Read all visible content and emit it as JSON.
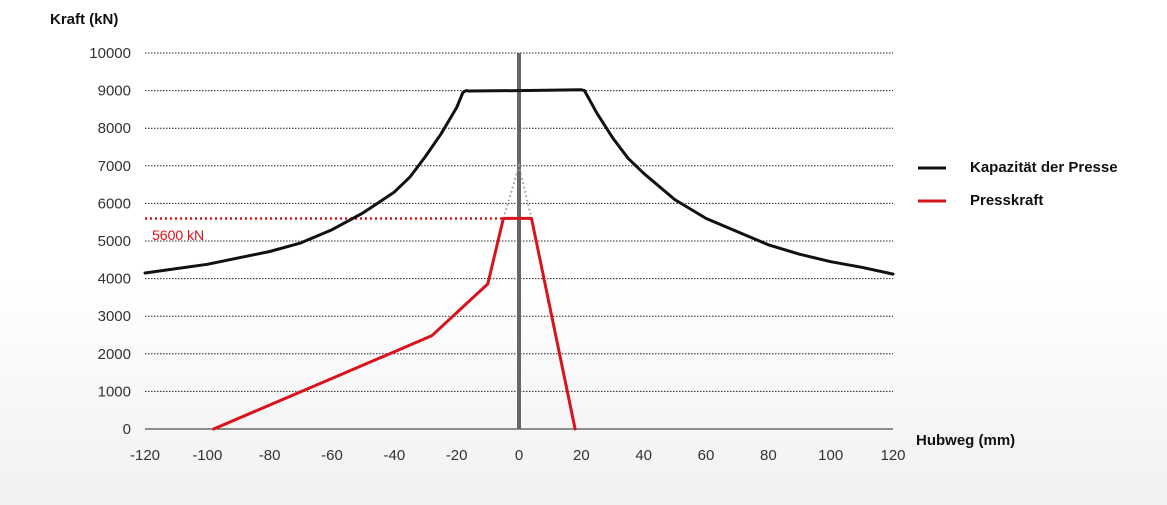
{
  "chart_data": {
    "type": "line",
    "ylabel": "Kraft (kN)",
    "xlabel": "Hubweg (mm)",
    "xlim": [
      -120,
      120
    ],
    "ylim": [
      0,
      10000
    ],
    "x_ticks": [
      -120,
      -100,
      -80,
      -60,
      -40,
      -20,
      0,
      20,
      40,
      60,
      80,
      100,
      120
    ],
    "y_ticks": [
      0,
      1000,
      2000,
      3000,
      4000,
      5000,
      6000,
      7000,
      8000,
      9000,
      10000
    ],
    "grid": "horizontal dotted",
    "legend_position": "right",
    "series": [
      {
        "name": "Kapazität der Presse",
        "color": "#111111",
        "points": [
          [
            -120,
            4150
          ],
          [
            -100,
            4380
          ],
          [
            -80,
            4720
          ],
          [
            -70,
            4950
          ],
          [
            -60,
            5300
          ],
          [
            -50,
            5750
          ],
          [
            -40,
            6300
          ],
          [
            -35,
            6700
          ],
          [
            -30,
            7250
          ],
          [
            -25,
            7850
          ],
          [
            -20,
            8550
          ],
          [
            -18,
            8950
          ],
          [
            -17,
            9000
          ],
          [
            -16,
            8990
          ],
          [
            0,
            9000
          ],
          [
            20,
            9020
          ],
          [
            21,
            9000
          ],
          [
            25,
            8400
          ],
          [
            30,
            7750
          ],
          [
            35,
            7200
          ],
          [
            40,
            6800
          ],
          [
            50,
            6100
          ],
          [
            60,
            5600
          ],
          [
            70,
            5250
          ],
          [
            80,
            4900
          ],
          [
            90,
            4650
          ],
          [
            100,
            4450
          ],
          [
            110,
            4300
          ],
          [
            120,
            4120
          ]
        ]
      },
      {
        "name": "Presskraft",
        "color": "#d9131d",
        "points": [
          [
            -98,
            0
          ],
          [
            -28,
            2480
          ],
          [
            -10,
            3860
          ],
          [
            -5,
            5600
          ],
          [
            4,
            5600
          ],
          [
            18,
            0
          ]
        ]
      }
    ],
    "peak_guide": {
      "color": "#999999",
      "points": [
        [
          -5,
          5600
        ],
        [
          0,
          7000
        ],
        [
          4,
          5600
        ]
      ]
    },
    "zero_line": {
      "x": 0,
      "color": "#666666"
    },
    "reference_line": {
      "y": 5600,
      "label": "5600 kN",
      "color": "#d9131d"
    }
  }
}
